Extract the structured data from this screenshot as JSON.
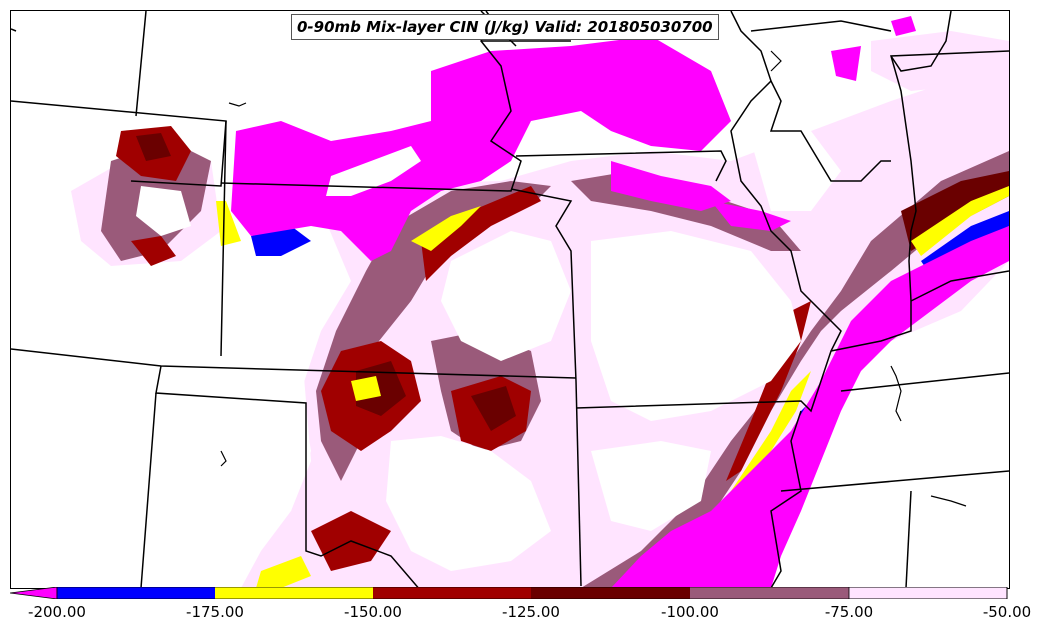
{
  "title": "0-90mb Mix-layer CIN (J/kg) Valid: 201805030700",
  "legend": {
    "ticks": [
      "-200.00",
      "-175.00",
      "-150.00",
      "-125.00",
      "-100.00",
      "-75.00",
      "-50.00"
    ],
    "bins": [
      {
        "range": "< -200",
        "color": "#ff00ff"
      },
      {
        "range": "-200 to -175",
        "color": "#0000ff"
      },
      {
        "range": "-175 to -150",
        "color": "#ffff00"
      },
      {
        "range": "-150 to -125",
        "color": "#a00000"
      },
      {
        "range": "-125 to -100",
        "color": "#6a0000"
      },
      {
        "range": "-100 to -75",
        "color": "#9a5a7a"
      },
      {
        "range": "-75 to -50",
        "color": "#ffe4ff"
      }
    ]
  },
  "colors": {
    "magenta": "#ff00ff",
    "blue": "#0000ff",
    "yellow": "#ffff00",
    "dark_red": "#a00000",
    "maroon": "#6a0000",
    "mauve": "#9a5a7a",
    "light_pink": "#ffe4ff",
    "boundaries": "#000000"
  }
}
